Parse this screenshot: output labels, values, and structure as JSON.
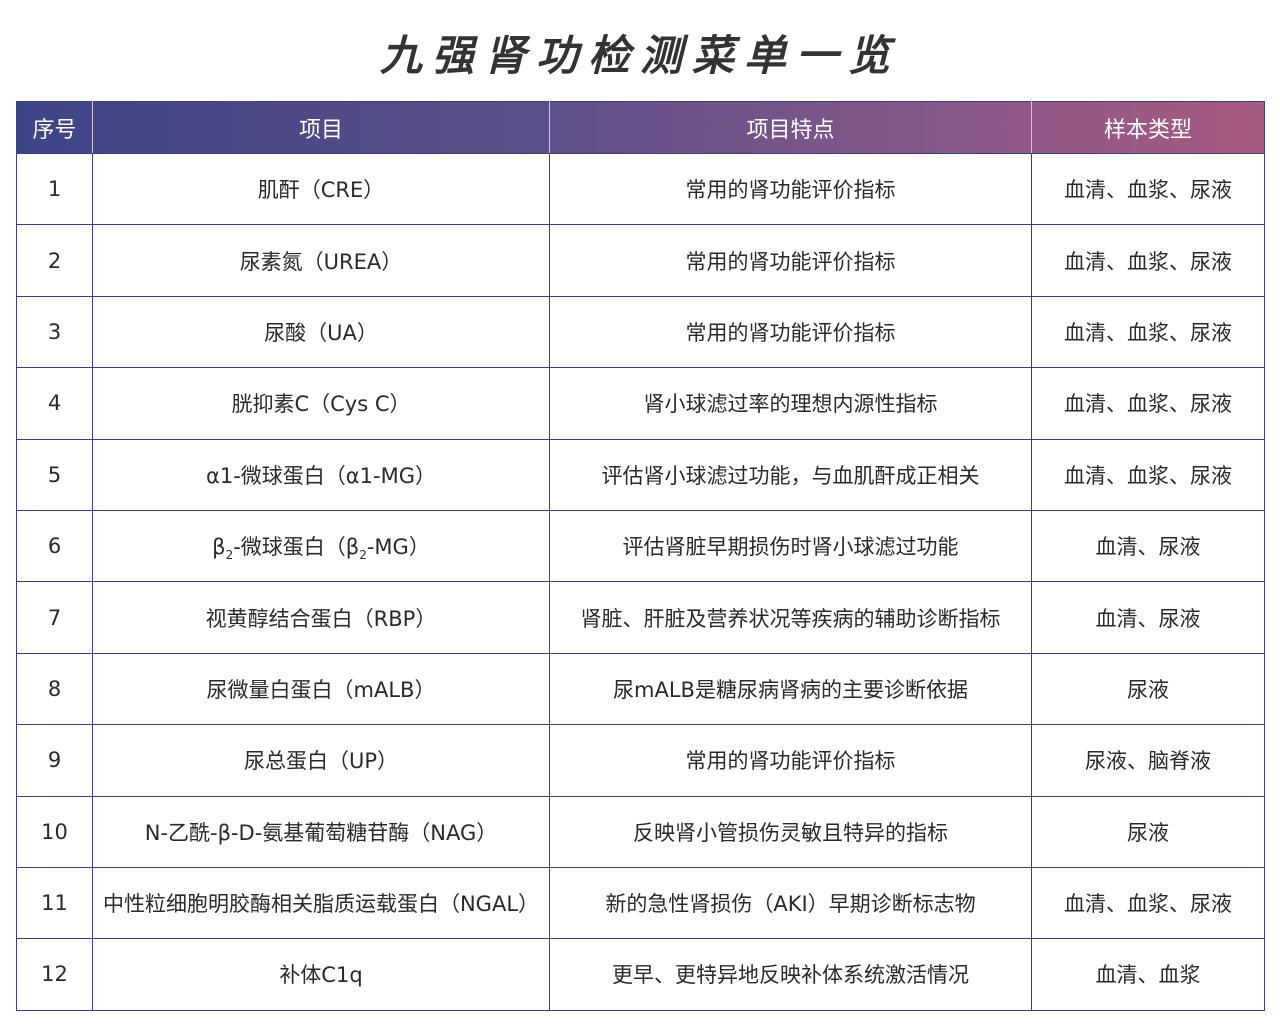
{
  "title": "九强肾功检测菜单一览",
  "colors": {
    "header_start": "#3f4486",
    "header_end": "#a85a80",
    "border": "#3b3f7a"
  },
  "headers": [
    "序号",
    "项目",
    "项目特点",
    "样本类型"
  ],
  "rows": [
    {
      "no": "1",
      "item": [
        {
          "t": "肌酐（CRE）"
        }
      ],
      "feature": "常用的肾功能评价指标",
      "sample": "血清、血浆、尿液"
    },
    {
      "no": "2",
      "item": [
        {
          "t": "尿素氮（UREA）"
        }
      ],
      "feature": "常用的肾功能评价指标",
      "sample": "血清、血浆、尿液"
    },
    {
      "no": "3",
      "item": [
        {
          "t": "尿酸（UA）"
        }
      ],
      "feature": "常用的肾功能评价指标",
      "sample": "血清、血浆、尿液"
    },
    {
      "no": "4",
      "item": [
        {
          "t": "胱抑素C（Cys C）"
        }
      ],
      "feature": "肾小球滤过率的理想内源性指标",
      "sample": "血清、血浆、尿液"
    },
    {
      "no": "5",
      "item": [
        {
          "t": "α1-微球蛋白（α1-MG）"
        }
      ],
      "feature": "评估肾小球滤过功能，与血肌酐成正相关",
      "sample": "血清、血浆、尿液"
    },
    {
      "no": "6",
      "item": [
        {
          "t": "β"
        },
        {
          "t": "2",
          "sub": true
        },
        {
          "t": "-微球蛋白（β"
        },
        {
          "t": "2",
          "sub": true
        },
        {
          "t": "-MG）"
        }
      ],
      "feature": "评估肾脏早期损伤时肾小球滤过功能",
      "sample": "血清、尿液"
    },
    {
      "no": "7",
      "item": [
        {
          "t": "视黄醇结合蛋白（RBP）"
        }
      ],
      "feature": "肾脏、肝脏及营养状况等疾病的辅助诊断指标",
      "sample": "血清、尿液"
    },
    {
      "no": "8",
      "item": [
        {
          "t": "尿微量白蛋白（mALB）"
        }
      ],
      "feature": "尿mALB是糖尿病肾病的主要诊断依据",
      "sample": "尿液"
    },
    {
      "no": "9",
      "item": [
        {
          "t": "尿总蛋白（UP）"
        }
      ],
      "feature": "常用的肾功能评价指标",
      "sample": "尿液、脑脊液"
    },
    {
      "no": "10",
      "item": [
        {
          "t": "N-乙酰-β-D-氨基葡萄糖苷酶（NAG）"
        }
      ],
      "feature": "反映肾小管损伤灵敏且特异的指标",
      "sample": "尿液"
    },
    {
      "no": "11",
      "item": [
        {
          "t": "中性粒细胞明胶酶相关脂质运载蛋白（NGAL）"
        }
      ],
      "feature": "新的急性肾损伤（AKI）早期诊断标志物",
      "sample": "血清、血浆、尿液"
    },
    {
      "no": "12",
      "item": [
        {
          "t": "补体C1q"
        }
      ],
      "feature": "更早、更特异地反映补体系统激活情况",
      "sample": "血清、血浆"
    }
  ]
}
